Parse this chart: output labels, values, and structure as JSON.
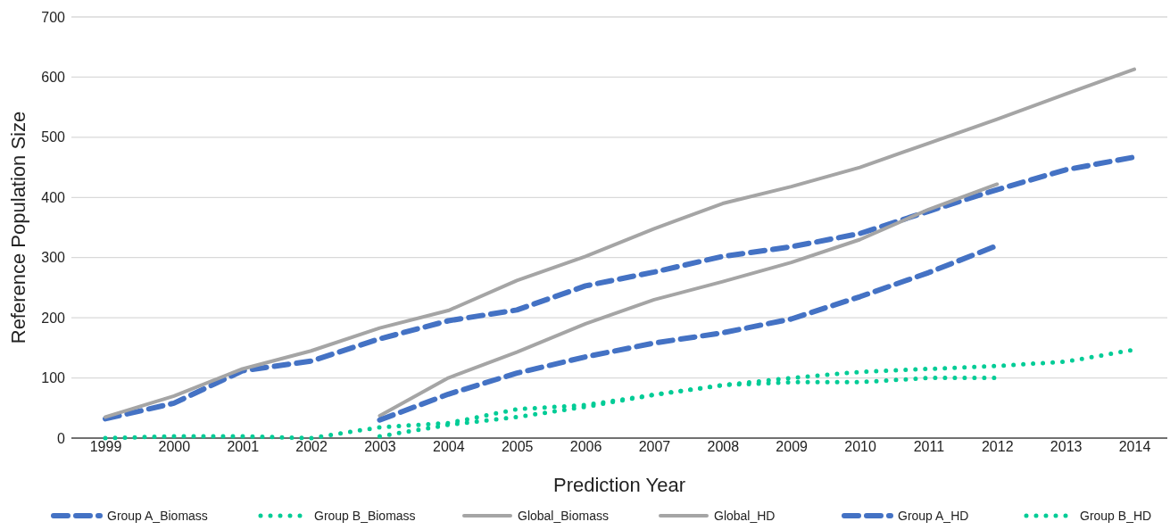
{
  "chart_data": {
    "type": "line",
    "xlabel": "Prediction Year",
    "ylabel": "Reference Population Size",
    "categories": [
      "1999",
      "2000",
      "2001",
      "2002",
      "2003",
      "2004",
      "2005",
      "2006",
      "2007",
      "2008",
      "2009",
      "2010",
      "2011",
      "2012",
      "2013",
      "2014"
    ],
    "ylim": [
      0,
      700
    ],
    "yticks": [
      0,
      100,
      200,
      300,
      400,
      500,
      600,
      700
    ],
    "grid": "y",
    "legend": "bottom",
    "marker": "none",
    "series": [
      {
        "name": "Group A_Biomass",
        "color": "#4472c4",
        "line_style": "dashed",
        "values": [
          32,
          58,
          112,
          128,
          165,
          195,
          213,
          253,
          276,
          302,
          318,
          340,
          377,
          413,
          446,
          467
        ]
      },
      {
        "name": "Group B_Biomass",
        "color": "#00cc96",
        "line_style": "dotted",
        "values": [
          0,
          3,
          3,
          0,
          18,
          25,
          48,
          55,
          72,
          88,
          100,
          110,
          115,
          120,
          127,
          147
        ]
      },
      {
        "name": "Global_Biomass",
        "color": "#a5a5a5",
        "line_style": "solid",
        "values": [
          35,
          70,
          115,
          145,
          183,
          212,
          262,
          302,
          348,
          390,
          418,
          450,
          490,
          530,
          572,
          613
        ]
      },
      {
        "name": "Global_HD",
        "color": "#a5a5a5",
        "line_style": "solid",
        "values": [
          null,
          null,
          null,
          null,
          37,
          100,
          143,
          190,
          230,
          260,
          292,
          330,
          380,
          422,
          null,
          null
        ]
      },
      {
        "name": "Group A_HD",
        "color": "#4472c4",
        "line_style": "dashed",
        "values": [
          null,
          null,
          null,
          null,
          30,
          73,
          108,
          135,
          158,
          175,
          198,
          235,
          275,
          320,
          null,
          null
        ]
      },
      {
        "name": "Group B_HD",
        "color": "#00cc96",
        "line_style": "dotted",
        "values": [
          null,
          null,
          null,
          null,
          3,
          22,
          35,
          52,
          72,
          88,
          93,
          93,
          100,
          100,
          null,
          null
        ]
      }
    ]
  }
}
